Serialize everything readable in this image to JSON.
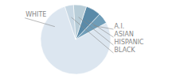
{
  "chart_data": {
    "type": "pie",
    "categories": [
      "WHITE",
      "A.I.",
      "ASIAN",
      "HISPANIC",
      "BLACK"
    ],
    "values": [
      78,
      5,
      7,
      6,
      4
    ],
    "colors": [
      "#dce6f0",
      "#6f9db8",
      "#5a8aa8",
      "#b8cdd8",
      "#c8d8e4"
    ]
  }
}
